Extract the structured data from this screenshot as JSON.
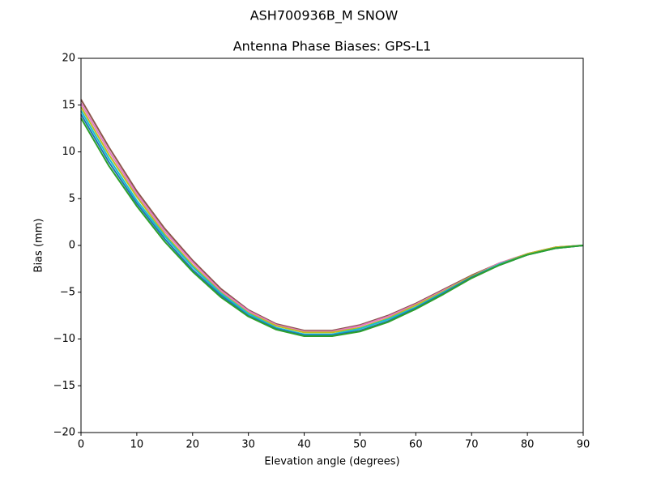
{
  "chart_data": {
    "type": "line",
    "suptitle": "ASH700936B_M    SNOW",
    "title": "Antenna Phase Biases: GPS-L1",
    "x_label": "Elevation angle (degrees)",
    "y_label": "Bias (mm)",
    "x": [
      0,
      5,
      10,
      15,
      20,
      25,
      30,
      35,
      40,
      45,
      50,
      55,
      60,
      65,
      70,
      75,
      80,
      85,
      90
    ],
    "xlim": [
      0,
      90
    ],
    "ylim": [
      -20,
      20
    ],
    "xticks": [
      0,
      10,
      20,
      30,
      40,
      50,
      60,
      70,
      80,
      90
    ],
    "yticks": [
      {
        "value": -20,
        "label": "−20"
      },
      {
        "value": -15,
        "label": "−15"
      },
      {
        "value": -10,
        "label": "−10"
      },
      {
        "value": -5,
        "label": "−5"
      },
      0,
      5,
      10,
      15,
      20
    ],
    "grid": false,
    "series": [
      {
        "color": "#8c564b",
        "values": [
          15.6,
          10.5,
          5.8,
          1.8,
          -1.6,
          -4.6,
          -6.9,
          -8.4,
          -9.1,
          -9.1,
          -8.5,
          -7.5,
          -6.2,
          -4.7,
          -3.2,
          -1.9,
          -0.9,
          -0.2,
          0
        ]
      },
      {
        "color": "#e377c2",
        "values": [
          15.2,
          10.1,
          5.5,
          1.5,
          -1.8,
          -4.8,
          -7.0,
          -8.5,
          -9.2,
          -9.2,
          -8.6,
          -7.6,
          -6.3,
          -4.8,
          -3.3,
          -1.9,
          -0.9,
          -0.2,
          0
        ]
      },
      {
        "color": "#bcbd22",
        "values": [
          14.8,
          9.7,
          5.2,
          1.2,
          -2.1,
          -5.0,
          -7.2,
          -8.6,
          -9.3,
          -9.3,
          -8.8,
          -7.8,
          -6.4,
          -4.9,
          -3.3,
          -2.0,
          -0.9,
          -0.2,
          0
        ]
      },
      {
        "color": "#17becf",
        "values": [
          14.4,
          9.3,
          4.8,
          1.0,
          -2.3,
          -5.1,
          -7.3,
          -8.8,
          -9.5,
          -9.5,
          -8.9,
          -7.9,
          -6.6,
          -5.0,
          -3.4,
          -2.0,
          -1.0,
          -0.3,
          0
        ]
      },
      {
        "color": "#1f77b4",
        "values": [
          14.0,
          8.9,
          4.5,
          0.7,
          -2.6,
          -5.3,
          -7.5,
          -8.9,
          -9.6,
          -9.6,
          -9.1,
          -8.1,
          -6.7,
          -5.1,
          -3.4,
          -2.1,
          -1.0,
          -0.3,
          0
        ]
      },
      {
        "color": "#2ca02c",
        "values": [
          13.6,
          8.5,
          4.2,
          0.4,
          -2.8,
          -5.5,
          -7.6,
          -9.0,
          -9.7,
          -9.7,
          -9.2,
          -8.2,
          -6.8,
          -5.2,
          -3.5,
          -2.1,
          -1.0,
          -0.3,
          0
        ]
      }
    ]
  }
}
